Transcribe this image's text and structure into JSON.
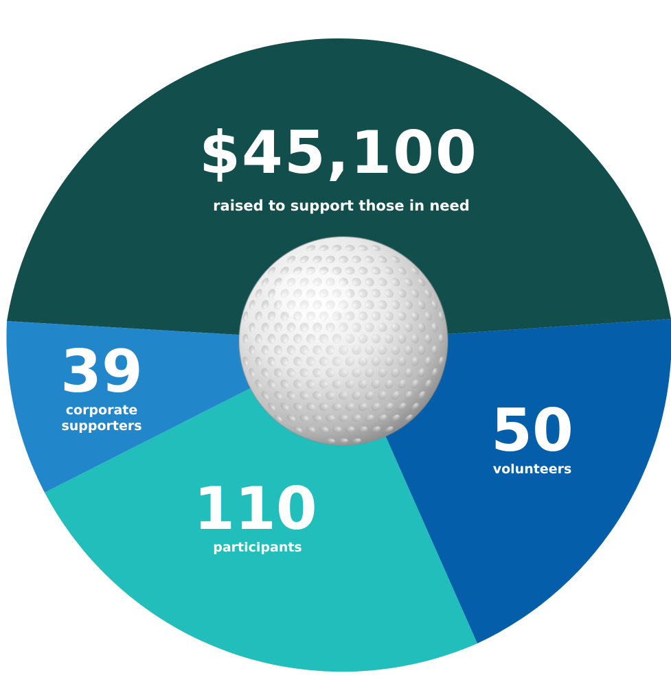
{
  "stats": {
    "raised": {
      "value": "$45,100",
      "label": "raised to support those in need"
    },
    "volunteers": {
      "value": "50",
      "label": "volunteers"
    },
    "participants": {
      "value": "110",
      "label": "participants"
    },
    "supporters": {
      "value": "39",
      "label_line1": "corporate",
      "label_line2": "supporters"
    }
  },
  "colors": {
    "raised": "#114e4c",
    "volunteers": "#055eaa",
    "participants": "#22bebb",
    "supporters": "#2287ca",
    "text": "#ffffff"
  },
  "icons": {
    "center": "golf-ball-icon"
  }
}
